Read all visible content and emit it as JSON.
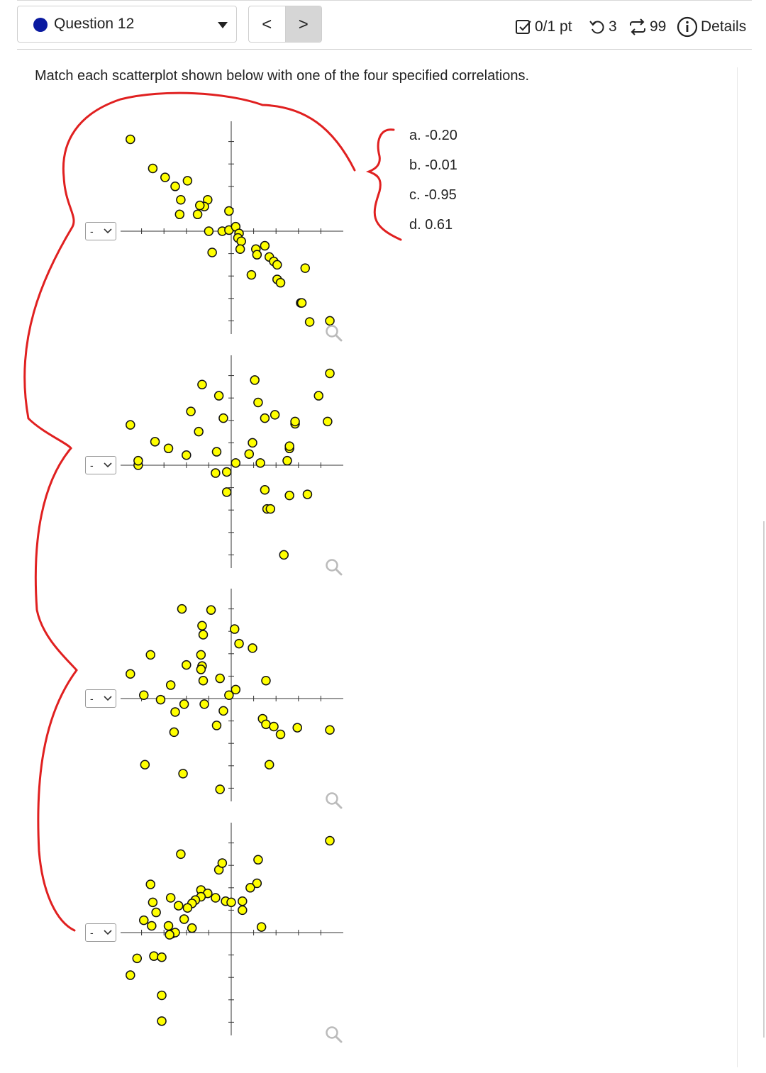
{
  "header": {
    "question_label": "Question 12",
    "prev_label": "<",
    "next_label": ">",
    "points": "0/1 pt",
    "retries": "3",
    "submissions": "99",
    "details": "Details"
  },
  "prompt": "Match each scatterplot shown below with one of the four specified correlations.",
  "choices": [
    "a. -0.20",
    "b. -0.01",
    "c. -0.95",
    "d. 0.61"
  ],
  "dropdown_value": "-",
  "colors": {
    "accent": "#0a1aa0",
    "marker_fill": "#ffff00",
    "annotation": "#e02020"
  },
  "chart_data": [
    {
      "type": "scatter",
      "xlim": [
        -5,
        5
      ],
      "ylim": [
        -4.5,
        4.5
      ],
      "points": [
        [
          -4.5,
          4.1
        ],
        [
          -3.5,
          2.8
        ],
        [
          -2.95,
          2.4
        ],
        [
          -2.5,
          2.0
        ],
        [
          -1.95,
          2.25
        ],
        [
          -2.25,
          1.4
        ],
        [
          -2.3,
          0.75
        ],
        [
          -1.05,
          1.4
        ],
        [
          -1.2,
          1.1
        ],
        [
          -1.4,
          1.15
        ],
        [
          -1.5,
          0.75
        ],
        [
          -0.1,
          0.9
        ],
        [
          -1.0,
          0.0
        ],
        [
          -0.4,
          0.0
        ],
        [
          -0.1,
          0.05
        ],
        [
          0.2,
          0.2
        ],
        [
          0.35,
          -0.1
        ],
        [
          0.3,
          -0.3
        ],
        [
          0.45,
          -0.45
        ],
        [
          -0.85,
          -0.95
        ],
        [
          0.4,
          -0.8
        ],
        [
          1.1,
          -0.8
        ],
        [
          1.5,
          -0.65
        ],
        [
          1.15,
          -1.05
        ],
        [
          1.7,
          -1.15
        ],
        [
          1.9,
          -1.35
        ],
        [
          2.05,
          -1.5
        ],
        [
          2.05,
          -2.15
        ],
        [
          2.2,
          -2.3
        ],
        [
          0.9,
          -1.95
        ],
        [
          3.3,
          -1.65
        ],
        [
          3.1,
          -3.2
        ],
        [
          3.15,
          -3.2
        ],
        [
          3.5,
          -4.05
        ],
        [
          4.4,
          -4.0
        ]
      ]
    },
    {
      "type": "scatter",
      "xlim": [
        -5,
        5
      ],
      "ylim": [
        -4.5,
        4.5
      ],
      "points": [
        [
          -4.5,
          1.8
        ],
        [
          -4.15,
          0.0
        ],
        [
          -4.15,
          0.2
        ],
        [
          -3.4,
          1.05
        ],
        [
          -2.8,
          0.75
        ],
        [
          -2.0,
          0.45
        ],
        [
          -1.8,
          2.4
        ],
        [
          -1.45,
          1.5
        ],
        [
          -1.3,
          3.6
        ],
        [
          -0.65,
          0.6
        ],
        [
          -0.55,
          3.1
        ],
        [
          -0.35,
          2.1
        ],
        [
          -0.7,
          -0.35
        ],
        [
          -0.2,
          -0.3
        ],
        [
          0.2,
          0.1
        ],
        [
          -0.2,
          -1.2
        ],
        [
          1.05,
          3.8
        ],
        [
          1.2,
          2.8
        ],
        [
          1.5,
          2.1
        ],
        [
          1.95,
          2.25
        ],
        [
          0.95,
          1.0
        ],
        [
          0.8,
          0.5
        ],
        [
          1.3,
          0.1
        ],
        [
          2.85,
          1.85
        ],
        [
          2.85,
          1.95
        ],
        [
          2.6,
          0.75
        ],
        [
          2.6,
          0.85
        ],
        [
          2.5,
          0.2
        ],
        [
          1.5,
          -1.1
        ],
        [
          1.6,
          -1.95
        ],
        [
          1.75,
          -1.95
        ],
        [
          2.6,
          -1.35
        ],
        [
          3.4,
          -1.3
        ],
        [
          3.9,
          3.1
        ],
        [
          4.4,
          4.1
        ],
        [
          4.3,
          1.95
        ],
        [
          2.35,
          -4.0
        ]
      ]
    },
    {
      "type": "scatter",
      "xlim": [
        -5,
        5
      ],
      "ylim": [
        -4.5,
        4.5
      ],
      "points": [
        [
          -2.2,
          4.0
        ],
        [
          -0.9,
          3.95
        ],
        [
          -1.3,
          3.25
        ],
        [
          -1.25,
          2.85
        ],
        [
          0.15,
          3.1
        ],
        [
          0.35,
          2.45
        ],
        [
          0.95,
          2.25
        ],
        [
          -3.6,
          1.95
        ],
        [
          -1.35,
          1.95
        ],
        [
          -1.3,
          1.45
        ],
        [
          -1.35,
          1.3
        ],
        [
          -2.0,
          1.5
        ],
        [
          -4.5,
          1.1
        ],
        [
          -2.7,
          0.6
        ],
        [
          -0.5,
          0.9
        ],
        [
          -1.25,
          0.8
        ],
        [
          0.2,
          0.4
        ],
        [
          -0.1,
          0.15
        ],
        [
          1.55,
          0.8
        ],
        [
          -3.9,
          0.15
        ],
        [
          -3.15,
          -0.05
        ],
        [
          -2.1,
          -0.25
        ],
        [
          -1.2,
          -0.25
        ],
        [
          -2.5,
          -0.6
        ],
        [
          -0.35,
          -0.55
        ],
        [
          -2.55,
          -1.5
        ],
        [
          -0.65,
          -1.2
        ],
        [
          1.4,
          -0.9
        ],
        [
          1.55,
          -1.15
        ],
        [
          1.9,
          -1.25
        ],
        [
          2.2,
          -1.6
        ],
        [
          2.95,
          -1.3
        ],
        [
          4.4,
          -1.4
        ],
        [
          -3.85,
          -2.95
        ],
        [
          -2.15,
          -3.35
        ],
        [
          1.7,
          -2.95
        ],
        [
          -0.5,
          -4.05
        ]
      ]
    },
    {
      "type": "scatter",
      "xlim": [
        -5,
        5
      ],
      "ylim": [
        -4.5,
        4.5
      ],
      "points": [
        [
          -2.25,
          3.5
        ],
        [
          -0.55,
          2.8
        ],
        [
          -0.4,
          3.1
        ],
        [
          1.2,
          3.25
        ],
        [
          1.15,
          2.2
        ],
        [
          0.85,
          2.0
        ],
        [
          -3.6,
          2.15
        ],
        [
          -2.7,
          1.55
        ],
        [
          -1.35,
          1.9
        ],
        [
          -1.05,
          1.75
        ],
        [
          -1.35,
          1.6
        ],
        [
          -1.6,
          1.45
        ],
        [
          -1.75,
          1.3
        ],
        [
          -0.7,
          1.55
        ],
        [
          -0.25,
          1.4
        ],
        [
          0.0,
          1.35
        ],
        [
          -2.35,
          1.2
        ],
        [
          -1.95,
          1.1
        ],
        [
          -3.5,
          1.35
        ],
        [
          -3.35,
          0.9
        ],
        [
          -3.9,
          0.55
        ],
        [
          -3.55,
          0.3
        ],
        [
          -2.8,
          0.3
        ],
        [
          -2.1,
          0.6
        ],
        [
          -1.75,
          0.2
        ],
        [
          1.35,
          0.25
        ],
        [
          0.5,
          1.4
        ],
        [
          0.5,
          1.0
        ],
        [
          -2.65,
          -0.05
        ],
        [
          -2.5,
          0.0
        ],
        [
          -2.75,
          -0.1
        ],
        [
          -4.2,
          -1.15
        ],
        [
          -3.45,
          -1.05
        ],
        [
          -3.1,
          -1.1
        ],
        [
          -3.1,
          -2.8
        ],
        [
          -4.5,
          -1.9
        ],
        [
          -3.1,
          -3.95
        ],
        [
          4.4,
          4.1
        ]
      ]
    }
  ]
}
